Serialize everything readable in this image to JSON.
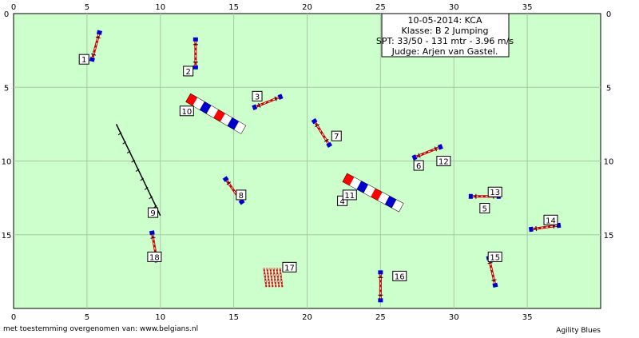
{
  "course": {
    "axis_x_ticks": [
      "0",
      "5",
      "10",
      "15",
      "20",
      "25",
      "30",
      "35"
    ],
    "axis_y_ticks": [
      "0",
      "5",
      "10",
      "15"
    ],
    "info": {
      "date_event": "10-05-2014: KCA",
      "klasse": "Klasse: B 2 Jumping",
      "spt": "SPT: 33/50 - 131 mtr - 3.96 m/s",
      "judge": "Judge: Arjen van Gastel."
    },
    "obstacles": [
      {
        "number": "1",
        "type": "hurdle",
        "x": 5.6,
        "y": 2.2,
        "angle": -75,
        "label_x": 4.8,
        "label_y": 3.1
      },
      {
        "number": "2",
        "type": "hurdle",
        "x": 12.4,
        "y": 2.7,
        "angle": -90,
        "label_x": 11.9,
        "label_y": 3.9
      },
      {
        "number": "3",
        "type": "hurdle",
        "x": 17.3,
        "y": 6.0,
        "angle": -22,
        "label_x": 16.6,
        "label_y": 5.6
      },
      {
        "number": "4",
        "type": "label",
        "x": 0,
        "y": 0,
        "angle": 0,
        "label_x": 22.4,
        "label_y": 12.7
      },
      {
        "number": "5",
        "type": "label",
        "x": 0,
        "y": 0,
        "angle": 0,
        "label_x": 32.1,
        "label_y": 13.2
      },
      {
        "number": "6",
        "type": "hurdle",
        "x": 28.2,
        "y": 9.4,
        "angle": -22,
        "label_x": 27.6,
        "label_y": 10.3
      },
      {
        "number": "7",
        "type": "hurdle",
        "x": 21.0,
        "y": 8.1,
        "angle": 58,
        "label_x": 22.0,
        "label_y": 8.3
      },
      {
        "number": "8",
        "type": "hurdle",
        "x": 15.0,
        "y": 12.0,
        "angle": 55,
        "label_x": 15.5,
        "label_y": 12.3
      },
      {
        "number": "9",
        "type": "label",
        "x": 0,
        "y": 0,
        "angle": 0,
        "label_x": 9.5,
        "label_y": 13.5
      },
      {
        "number": "10",
        "type": "label",
        "x": 0,
        "y": 0,
        "angle": 0,
        "label_x": 11.8,
        "label_y": 6.6
      },
      {
        "number": "11",
        "type": "label",
        "x": 0,
        "y": 0,
        "angle": 0,
        "label_x": 22.9,
        "label_y": 12.3
      },
      {
        "number": "12",
        "type": "label",
        "x": 0,
        "y": 0,
        "angle": 0,
        "label_x": 29.3,
        "label_y": 10.0
      },
      {
        "number": "13",
        "type": "hurdle",
        "x": 32.1,
        "y": 12.4,
        "angle": 0,
        "label_x": 32.8,
        "label_y": 12.1
      },
      {
        "number": "14",
        "type": "hurdle",
        "x": 36.2,
        "y": 14.5,
        "angle": -8,
        "label_x": 36.6,
        "label_y": 14.0
      },
      {
        "number": "15",
        "type": "hurdle",
        "x": 32.6,
        "y": 17.5,
        "angle": 77,
        "label_x": 32.8,
        "label_y": 16.5
      },
      {
        "number": "16",
        "type": "hurdle",
        "x": 25.0,
        "y": 18.5,
        "angle": 90,
        "label_x": 26.3,
        "label_y": 17.8
      },
      {
        "number": "17",
        "type": "label",
        "x": 0,
        "y": 0,
        "angle": 0,
        "label_x": 18.8,
        "label_y": 17.2
      },
      {
        "number": "18",
        "type": "hurdle",
        "x": 9.6,
        "y": 15.8,
        "angle": 80,
        "label_x": 9.6,
        "label_y": 16.5
      }
    ],
    "tunnels": [
      {
        "x": 13.8,
        "y": 6.8,
        "angle": 30,
        "length": 4.4,
        "name": "tunnel-10"
      },
      {
        "x": 24.6,
        "y": 12.2,
        "angle": 28,
        "length": 4.6,
        "name": "tunnel-4-11"
      }
    ],
    "walks": [
      {
        "x1": 7.0,
        "y1": 7.5,
        "x2": 10.0,
        "y2": 13.7,
        "name": "dogwalk-9"
      }
    ],
    "weave": {
      "x": 17.6,
      "y": 17.9,
      "name": "weave-17"
    },
    "footer_left": "met toestemming overgenomen van: www.belgians.nl",
    "footer_right": "Agility Blues",
    "colors": {
      "field": "#ccffcc",
      "grid": "#a8c8a8",
      "tunnel_red": "#ff0000",
      "tunnel_blue": "#0000cc",
      "pole_red": "#cc0000",
      "pole_white": "#ffffff",
      "wing_blue": "#0000cc",
      "wing_black": "#000000"
    }
  }
}
